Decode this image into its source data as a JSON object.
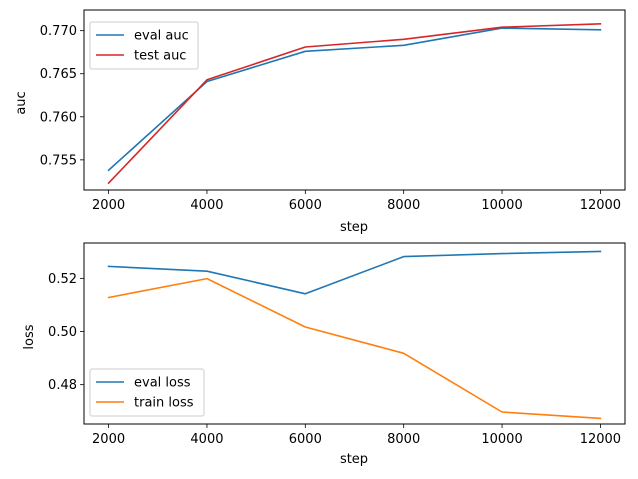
{
  "chart_data": [
    {
      "type": "line",
      "xlabel": "step",
      "ylabel": "auc",
      "x": [
        2000,
        4000,
        6000,
        8000,
        10000,
        12000
      ],
      "xticks": [
        "2000",
        "4000",
        "6000",
        "8000",
        "10000",
        "12000"
      ],
      "yticks": [
        "0.755",
        "0.760",
        "0.765",
        "0.770"
      ],
      "xlim": [
        1500,
        12500
      ],
      "ylim": [
        0.7515,
        0.7724
      ],
      "legend_position": "upper-left",
      "grid": false,
      "series": [
        {
          "name": "eval auc",
          "color": "#1f77b4",
          "values": [
            0.7538,
            0.7641,
            0.7676,
            0.7683,
            0.7703,
            0.7701
          ]
        },
        {
          "name": "test auc",
          "color": "#d62728",
          "values": [
            0.7523,
            0.7643,
            0.7681,
            0.769,
            0.7704,
            0.7708
          ]
        }
      ]
    },
    {
      "type": "line",
      "xlabel": "step",
      "ylabel": "loss",
      "x": [
        2000,
        4000,
        6000,
        8000,
        10000,
        12000
      ],
      "xticks": [
        "2000",
        "4000",
        "6000",
        "8000",
        "10000",
        "12000"
      ],
      "yticks": [
        "0.48",
        "0.50",
        "0.52"
      ],
      "xlim": [
        1500,
        12500
      ],
      "ylim": [
        0.4652,
        0.5333
      ],
      "legend_position": "lower-left",
      "grid": false,
      "series": [
        {
          "name": "eval loss",
          "color": "#1f77b4",
          "values": [
            0.5245,
            0.5227,
            0.5142,
            0.5282,
            0.5293,
            0.5301
          ]
        },
        {
          "name": "train loss",
          "color": "#ff7f0e",
          "values": [
            0.5128,
            0.5199,
            0.5017,
            0.4918,
            0.4697,
            0.4673
          ]
        }
      ]
    }
  ]
}
